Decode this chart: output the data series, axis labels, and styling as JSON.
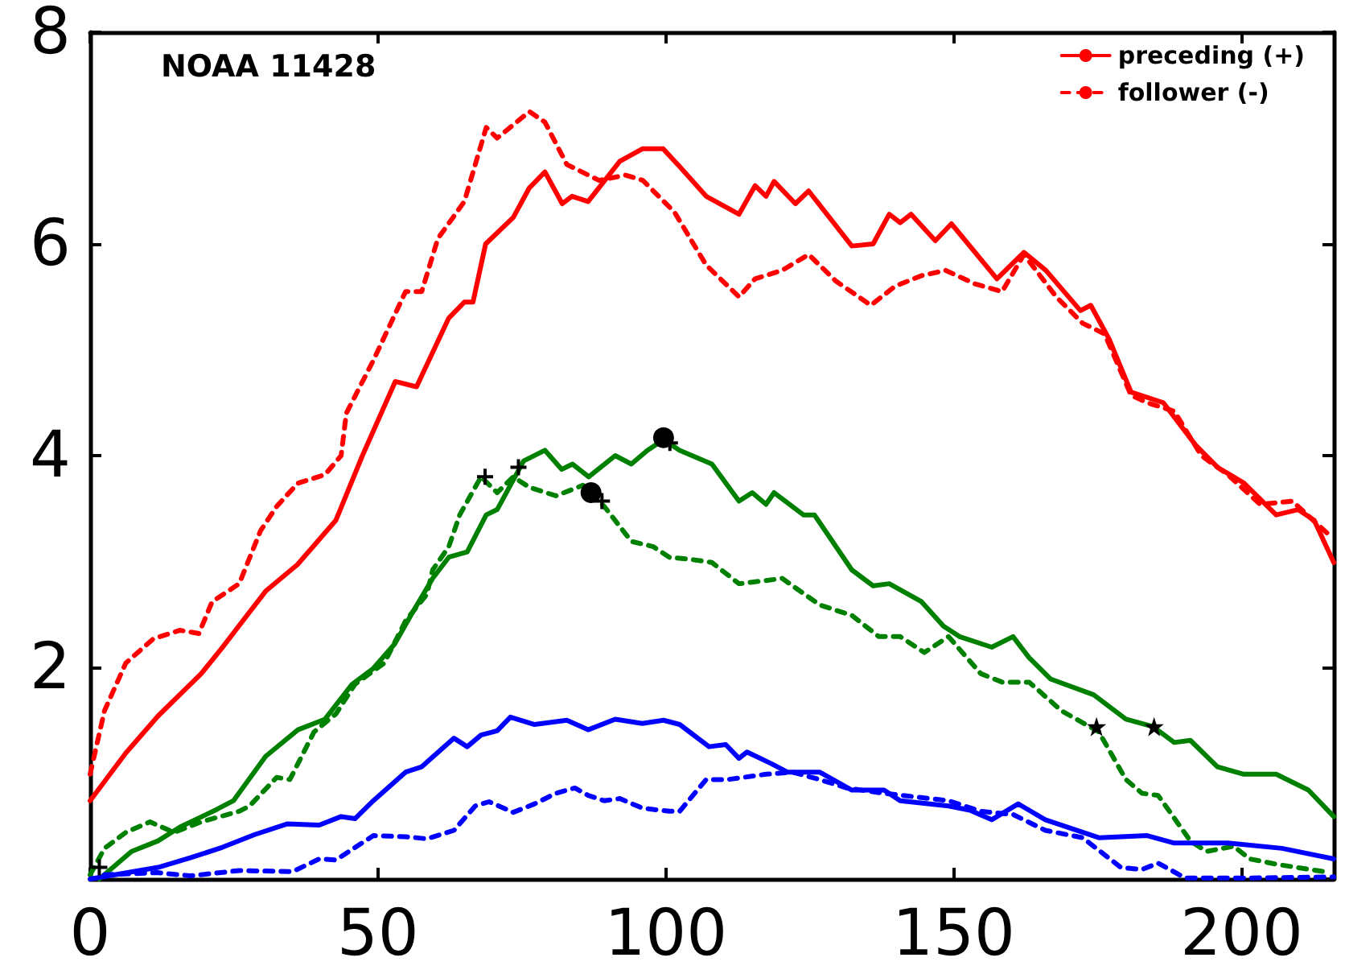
{
  "chart_data": {
    "type": "line",
    "title": "NOAA 11428",
    "xlim": [
      0,
      216
    ],
    "xticks": [
      0,
      50,
      100,
      150,
      200
    ],
    "ylim": [
      0,
      8
    ],
    "yticks": [
      {
        "value": 0,
        "label": null
      },
      2,
      4,
      6,
      8
    ],
    "grid": false,
    "legend": "top right",
    "series": [
      {
        "name": "preceding (+)",
        "color": "#ff0000",
        "line_style": "solid",
        "marker": "none",
        "x": [
          0,
          6.2,
          11.8,
          19.3,
          23,
          30.5,
          36,
          42.7,
          47.3,
          53,
          56.7,
          62.3,
          65,
          66.5,
          68.7,
          73.5,
          76.3,
          79,
          82,
          83.7,
          86.5,
          92,
          96,
          99.5,
          102.4,
          107,
          112.7,
          115.5,
          117.4,
          118.8,
          122.5,
          124.8,
          132.3,
          136,
          138.8,
          140.7,
          142.6,
          146.8,
          149.6,
          157.5,
          162.2,
          166,
          172,
          173.8,
          177,
          180.8,
          186.4,
          192,
          195.8,
          200.4,
          206,
          209.8,
          212.6,
          216
        ],
        "values": [
          0.74,
          1.19,
          1.54,
          1.94,
          2.19,
          2.72,
          2.97,
          3.39,
          4.0,
          4.7,
          4.65,
          5.3,
          5.45,
          5.45,
          6.0,
          6.25,
          6.53,
          6.68,
          6.38,
          6.45,
          6.4,
          6.78,
          6.9,
          6.9,
          6.73,
          6.45,
          6.28,
          6.55,
          6.45,
          6.59,
          6.38,
          6.5,
          5.98,
          6.0,
          6.28,
          6.2,
          6.28,
          6.03,
          6.19,
          5.67,
          5.92,
          5.75,
          5.37,
          5.42,
          5.1,
          4.6,
          4.5,
          4.1,
          3.89,
          3.74,
          3.44,
          3.49,
          3.39,
          2.99
        ]
      },
      {
        "name": "follower (-)",
        "color": "#ff0000",
        "line_style": "dashed",
        "marker": "none",
        "x": [
          0,
          2.5,
          6.2,
          11,
          15.6,
          18.9,
          21.2,
          25.9,
          29.6,
          32.4,
          36.1,
          40.8,
          43.6,
          44.5,
          49.2,
          54.8,
          57.6,
          60.4,
          65,
          68.8,
          70.7,
          76.3,
          79,
          82.8,
          88.4,
          93,
          96,
          101.5,
          107,
          112.7,
          115.5,
          120.2,
          124.8,
          129.5,
          135.6,
          139.8,
          144.4,
          148.6,
          153.8,
          158.4,
          162.2,
          167.8,
          172.4,
          176.2,
          180.8,
          183.6,
          188.3,
          193,
          197.6,
          203.2,
          208.8,
          215.4
        ],
        "values": [
          0.99,
          1.59,
          2.04,
          2.27,
          2.35,
          2.32,
          2.62,
          2.79,
          3.29,
          3.52,
          3.74,
          3.82,
          4.0,
          4.4,
          4.9,
          5.55,
          5.55,
          6.05,
          6.4,
          7.1,
          7.0,
          7.25,
          7.15,
          6.75,
          6.6,
          6.65,
          6.6,
          6.3,
          5.8,
          5.5,
          5.67,
          5.75,
          5.9,
          5.65,
          5.42,
          5.6,
          5.7,
          5.75,
          5.62,
          5.55,
          5.9,
          5.5,
          5.25,
          5.15,
          4.57,
          4.5,
          4.42,
          4.0,
          3.82,
          3.54,
          3.57,
          3.24
        ]
      },
      {
        "color": "#008000",
        "line_style": "solid",
        "marker": "none",
        "x": [
          1.6,
          7.2,
          11.8,
          15.6,
          22.1,
          24.9,
          30.5,
          36.1,
          40.8,
          45.5,
          49.2,
          52.9,
          55.7,
          59.5,
          62.3,
          65.5,
          68.8,
          70.7,
          75.3,
          79,
          81.9,
          83.8,
          86.6,
          91.2,
          94,
          96.8,
          99.6,
          102.4,
          108,
          112.7,
          115,
          117.4,
          118.8,
          123.9,
          125.8,
          132.3,
          136,
          138.8,
          144.4,
          148.2,
          151,
          156.6,
          160.3,
          163.1,
          166.8,
          174.3,
          179.9,
          184.6,
          188.3,
          191.1,
          195.8,
          200.4,
          206,
          211.6,
          216
        ],
        "values": [
          0,
          0.26,
          0.36,
          0.49,
          0.66,
          0.74,
          1.16,
          1.41,
          1.51,
          1.84,
          1.99,
          2.22,
          2.49,
          2.84,
          3.04,
          3.09,
          3.44,
          3.49,
          3.95,
          4.05,
          3.87,
          3.92,
          3.8,
          4.0,
          3.92,
          4.05,
          4.15,
          4.05,
          3.92,
          3.57,
          3.65,
          3.54,
          3.65,
          3.44,
          3.44,
          2.92,
          2.77,
          2.79,
          2.62,
          2.39,
          2.29,
          2.19,
          2.29,
          2.09,
          1.89,
          1.74,
          1.51,
          1.44,
          1.29,
          1.31,
          1.06,
          0.99,
          0.99,
          0.84,
          0.59
        ]
      },
      {
        "color": "#008000",
        "line_style": "dashed",
        "marker": "none",
        "x": [
          0,
          2.5,
          6.2,
          10.4,
          14.6,
          19.3,
          25.9,
          27.7,
          32.4,
          34.7,
          38.9,
          42.7,
          46,
          51.1,
          54.8,
          58.5,
          59.5,
          62.3,
          64.2,
          67.9,
          70.7,
          73.5,
          76.3,
          80.9,
          85.6,
          89.3,
          94,
          97.8,
          100.6,
          104.3,
          108,
          112.7,
          117.4,
          120.2,
          126.7,
          132.3,
          137,
          140.7,
          144.9,
          149.1,
          154.7,
          158.4,
          163.1,
          168.7,
          175.2,
          179.9,
          182.7,
          185.5,
          191.1,
          193.9,
          198.6,
          201.4,
          206,
          215.4
        ],
        "values": [
          0.04,
          0.29,
          0.44,
          0.54,
          0.44,
          0.54,
          0.64,
          0.69,
          0.96,
          0.94,
          1.39,
          1.56,
          1.84,
          2.04,
          2.44,
          2.69,
          2.92,
          3.14,
          3.44,
          3.8,
          3.65,
          3.8,
          3.7,
          3.62,
          3.72,
          3.52,
          3.19,
          3.14,
          3.04,
          3.02,
          2.99,
          2.79,
          2.82,
          2.84,
          2.59,
          2.49,
          2.29,
          2.29,
          2.14,
          2.29,
          1.94,
          1.86,
          1.86,
          1.59,
          1.39,
          0.94,
          0.81,
          0.79,
          0.36,
          0.26,
          0.31,
          0.19,
          0.14,
          0.06
        ]
      },
      {
        "color": "#0000ff",
        "line_style": "solid",
        "marker": "none",
        "x": [
          0,
          5.3,
          11.8,
          17.4,
          23,
          28.6,
          34.2,
          39.8,
          43.6,
          46,
          49.2,
          54.8,
          57.6,
          63.2,
          65.5,
          67.9,
          70.7,
          73,
          77.2,
          82.8,
          86.5,
          91.2,
          95.9,
          99.6,
          102.4,
          107.5,
          110.4,
          112.7,
          114.1,
          118.3,
          121.1,
          126.7,
          132.3,
          137.9,
          140.7,
          149.1,
          152.8,
          156.6,
          161.2,
          165.9,
          175.2,
          183.6,
          188.3,
          197.6,
          207,
          216
        ],
        "values": [
          0,
          0.05,
          0.11,
          0.2,
          0.3,
          0.42,
          0.52,
          0.51,
          0.59,
          0.57,
          0.74,
          1.01,
          1.06,
          1.33,
          1.25,
          1.36,
          1.4,
          1.53,
          1.46,
          1.5,
          1.41,
          1.51,
          1.47,
          1.5,
          1.46,
          1.25,
          1.27,
          1.14,
          1.2,
          1.09,
          1.01,
          1.01,
          0.84,
          0.84,
          0.74,
          0.69,
          0.65,
          0.56,
          0.71,
          0.56,
          0.39,
          0.41,
          0.34,
          0.34,
          0.29,
          0.19
        ]
      },
      {
        "color": "#0000ff",
        "line_style": "dashed",
        "marker": "none",
        "x": [
          2.5,
          11.8,
          17.4,
          25.9,
          35.2,
          39.8,
          42.7,
          49.2,
          54.8,
          58.5,
          63.2,
          66.9,
          69.3,
          73.5,
          77.2,
          80.9,
          84.2,
          86.5,
          89.3,
          92,
          95.9,
          100.6,
          102.4,
          107,
          110.8,
          117.4,
          122,
          126.7,
          131.4,
          137.9,
          149.1,
          154.7,
          160.3,
          165.9,
          172.4,
          179,
          182.7,
          185.5,
          190.2,
          201.4,
          216
        ],
        "values": [
          0.04,
          0.06,
          0.03,
          0.08,
          0.07,
          0.19,
          0.18,
          0.41,
          0.4,
          0.38,
          0.46,
          0.69,
          0.73,
          0.63,
          0.71,
          0.81,
          0.86,
          0.79,
          0.74,
          0.76,
          0.67,
          0.64,
          0.64,
          0.94,
          0.94,
          0.99,
          1.01,
          0.94,
          0.86,
          0.81,
          0.74,
          0.64,
          0.61,
          0.46,
          0.39,
          0.11,
          0.09,
          0.15,
          0.01,
          0.01,
          0.02
        ]
      },
      {
        "type": "scatter",
        "color": "#000000",
        "marker": "circle",
        "x": [
          87,
          99.6
        ],
        "values": [
          3.65,
          4.17
        ]
      },
      {
        "type": "scatter",
        "color": "#000000",
        "marker": "cross",
        "x": [
          1.6,
          68.6,
          74.4,
          88.9,
          100.7
        ],
        "values": [
          0.11,
          3.8,
          3.89,
          3.57,
          4.12
        ]
      },
      {
        "type": "scatter",
        "color": "#000000",
        "marker": "star",
        "x": [
          174.8,
          184.8
        ],
        "values": [
          1.44,
          1.44
        ]
      }
    ]
  }
}
